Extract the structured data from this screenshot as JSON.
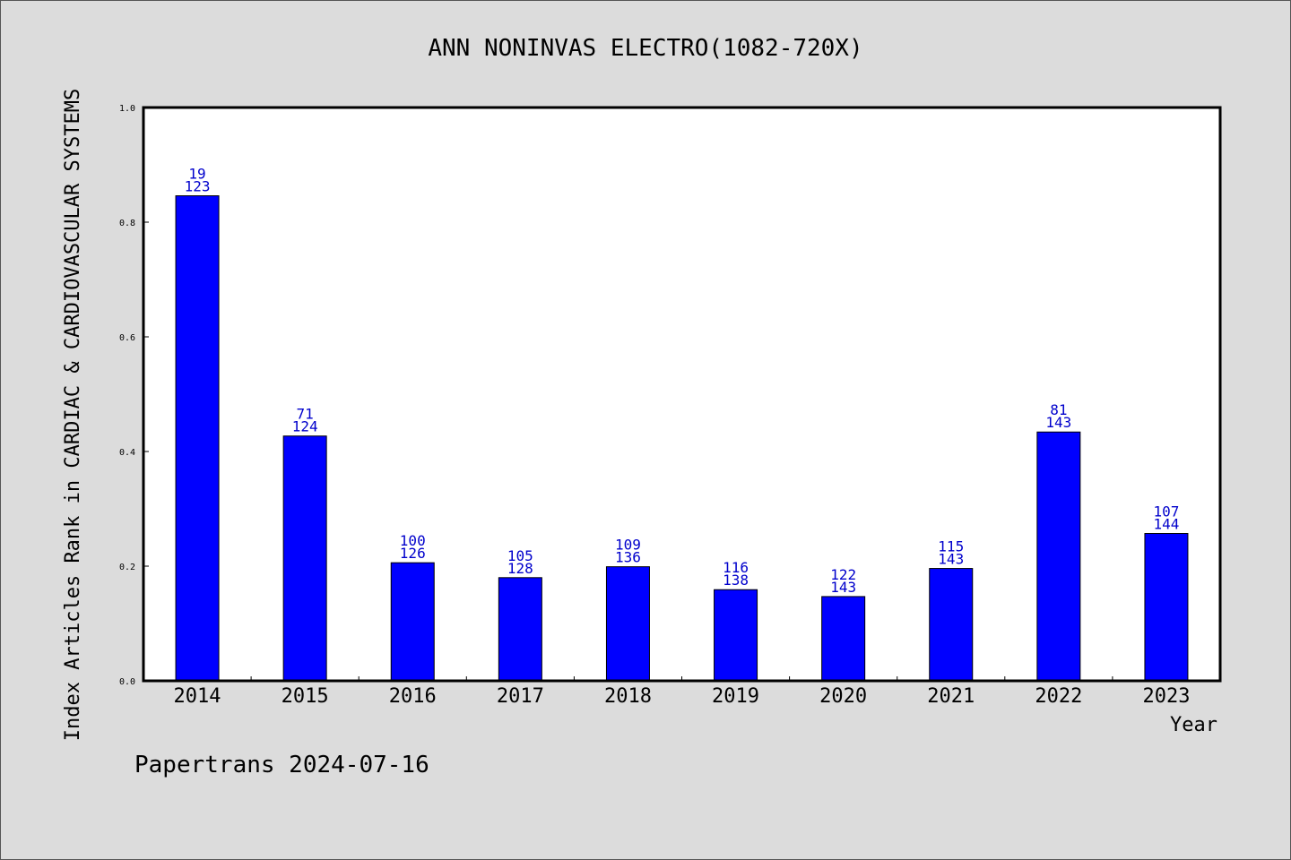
{
  "chart_data": {
    "type": "bar",
    "title": "ANN NONINVAS ELECTRO(1082-720X)",
    "xlabel": "Year",
    "ylabel": "Index Articles Rank in CARDIAC & CARDIOVASCULAR SYSTEMS",
    "ylim": [
      0,
      1.0
    ],
    "yticks": [
      "0.0",
      "0.2",
      "0.4",
      "0.6",
      "0.8",
      "1.0"
    ],
    "categories": [
      "2014",
      "2015",
      "2016",
      "2017",
      "2018",
      "2019",
      "2020",
      "2021",
      "2022",
      "2023"
    ],
    "values": [
      0.846,
      0.427,
      0.206,
      0.18,
      0.199,
      0.159,
      0.147,
      0.196,
      0.434,
      0.257
    ],
    "rank": [
      "19",
      "71",
      "100",
      "105",
      "109",
      "116",
      "122",
      "115",
      "81",
      "107"
    ],
    "total": [
      "123",
      "124",
      "126",
      "128",
      "136",
      "138",
      "143",
      "143",
      "143",
      "144"
    ],
    "bar_color": "#0000ff",
    "label_color": "#0000cc",
    "grid": false
  },
  "footer": "Papertrans 2024-07-16"
}
